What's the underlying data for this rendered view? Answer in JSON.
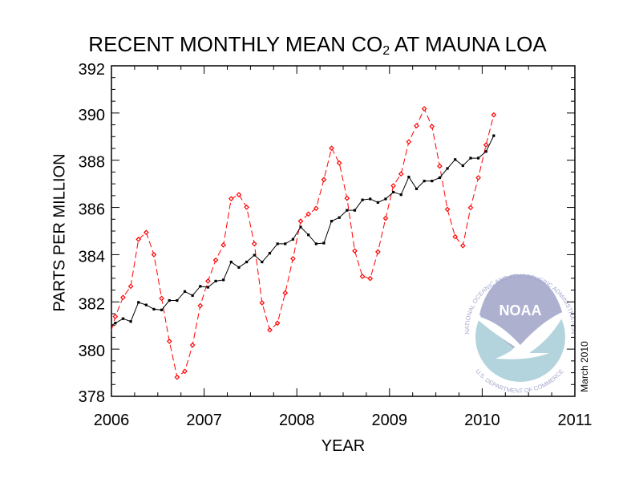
{
  "chart_data": {
    "type": "line",
    "title_prefix": "RECENT MONTHLY MEAN CO",
    "title_subscript": "2",
    "title_suffix": " AT MAUNA LOA",
    "xlabel": "YEAR",
    "ylabel": "PARTS PER MILLION",
    "xlim": [
      2006,
      2011
    ],
    "ylim": [
      378,
      392
    ],
    "x_ticks": [
      "2006",
      "2007",
      "2008",
      "2009",
      "2010",
      "2011"
    ],
    "y_ticks": [
      "378",
      "380",
      "382",
      "384",
      "386",
      "388",
      "390",
      "392"
    ],
    "grid": false,
    "months": [
      "2006-01",
      "2006-02",
      "2006-03",
      "2006-04",
      "2006-05",
      "2006-06",
      "2006-07",
      "2006-08",
      "2006-09",
      "2006-10",
      "2006-11",
      "2006-12",
      "2007-01",
      "2007-02",
      "2007-03",
      "2007-04",
      "2007-05",
      "2007-06",
      "2007-07",
      "2007-08",
      "2007-09",
      "2007-10",
      "2007-11",
      "2007-12",
      "2008-01",
      "2008-02",
      "2008-03",
      "2008-04",
      "2008-05",
      "2008-06",
      "2008-07",
      "2008-08",
      "2008-09",
      "2008-10",
      "2008-11",
      "2008-12",
      "2009-01",
      "2009-02",
      "2009-03",
      "2009-04",
      "2009-05",
      "2009-06",
      "2009-07",
      "2009-08",
      "2009-09",
      "2009-10",
      "2009-11",
      "2009-12",
      "2010-01",
      "2010-02"
    ],
    "series": [
      {
        "color": "#ff0000",
        "style": "dashed",
        "marker": "diamond",
        "values": [
          381.38,
          382.19,
          382.66,
          384.65,
          384.94,
          384.0,
          382.15,
          380.33,
          378.81,
          379.06,
          380.17,
          381.84,
          382.88,
          383.77,
          384.41,
          386.37,
          386.54,
          386.01,
          384.46,
          381.96,
          380.81,
          381.1,
          382.38,
          383.83,
          385.42,
          385.72,
          385.96,
          387.18,
          388.51,
          387.88,
          386.39,
          384.16,
          383.08,
          382.99,
          384.12,
          385.54,
          386.92,
          387.42,
          388.78,
          389.46,
          390.18,
          389.43,
          387.75,
          385.92,
          384.76,
          384.38,
          385.99,
          387.26,
          388.65,
          389.92
        ]
      },
      {
        "color": "#000000",
        "style": "solid",
        "marker": "square",
        "values": [
          381.1,
          381.29,
          381.17,
          381.98,
          381.87,
          381.69,
          381.66,
          382.06,
          382.06,
          382.44,
          382.27,
          382.66,
          382.62,
          382.88,
          382.93,
          383.69,
          383.46,
          383.69,
          383.98,
          383.69,
          384.06,
          384.46,
          384.46,
          384.65,
          385.17,
          384.84,
          384.46,
          384.49,
          385.42,
          385.57,
          385.88,
          385.88,
          386.32,
          386.36,
          386.21,
          386.36,
          386.65,
          386.54,
          387.29,
          386.79,
          387.12,
          387.12,
          387.26,
          387.65,
          388.03,
          387.77,
          388.09,
          388.09,
          388.37,
          389.04
        ]
      }
    ],
    "date_stamp": "March 2010"
  },
  "logo": {
    "name": "NOAA",
    "ring_top": "NATIONAL OCEANIC AND ATMOSPHERIC ADMINISTRATION",
    "ring_bottom": "U.S. DEPARTMENT OF COMMERCE",
    "colors": {
      "sky": "#aeb0d0",
      "sea": "#b3d4dc",
      "text": "#a5a7cf"
    }
  }
}
